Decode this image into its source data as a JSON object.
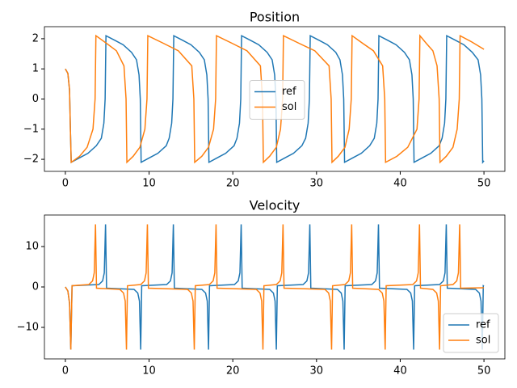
{
  "chart_data": [
    {
      "type": "line",
      "title": "Position",
      "xlim": [
        -2.5,
        52.5
      ],
      "xticks": [
        0,
        10,
        20,
        30,
        40,
        50
      ],
      "ylim": [
        -2.4,
        2.4
      ],
      "yticks": [
        {
          "value": -2,
          "label": "−2"
        },
        {
          "value": -1,
          "label": "−1"
        },
        0,
        1,
        2
      ],
      "legend": "center",
      "series": [
        {
          "name": "ref",
          "color": "#1f77b4",
          "x": [
            0,
            0.3,
            0.5,
            0.6,
            0.7,
            1.7,
            2.7,
            3.7,
            4.3,
            4.6,
            4.75,
            4.85,
            5.9,
            6.9,
            7.9,
            8.5,
            8.8,
            8.95,
            9.05,
            10.05,
            11.05,
            12.05,
            12.4,
            12.7,
            12.85,
            12.95,
            14,
            15,
            16,
            16.6,
            16.9,
            17.05,
            17.15,
            18.15,
            19.15,
            20.15,
            20.5,
            20.8,
            20.95,
            21.05,
            22.1,
            23.1,
            24.1,
            24.7,
            25,
            25.15,
            25.25,
            26.25,
            27.25,
            28.25,
            28.7,
            29,
            29.15,
            29.25,
            30.3,
            31.3,
            32.3,
            32.8,
            33.1,
            33.25,
            33.35,
            34.35,
            35.35,
            36.35,
            36.9,
            37.2,
            37.35,
            37.45,
            38.5,
            39.5,
            40.5,
            41.1,
            41.4,
            41.55,
            41.65,
            42.65,
            43.65,
            44.65,
            45,
            45.3,
            45.45,
            45.55,
            46.6,
            47.6,
            48.6,
            49.3,
            49.6,
            49.75,
            49.85,
            50
          ],
          "values": [
            1,
            0.85,
            0.3,
            -1,
            -2.1,
            -1.95,
            -1.8,
            -1.55,
            -1.3,
            -0.8,
            0,
            2.1,
            1.95,
            1.8,
            1.55,
            1.3,
            0.8,
            0,
            -2.1,
            -1.95,
            -1.8,
            -1.55,
            -1.3,
            -0.8,
            0,
            2.1,
            1.95,
            1.8,
            1.55,
            1.3,
            0.8,
            0,
            -2.1,
            -1.95,
            -1.8,
            -1.55,
            -1.3,
            -0.8,
            0,
            2.1,
            1.95,
            1.8,
            1.55,
            1.3,
            0.8,
            0,
            -2.1,
            -1.95,
            -1.8,
            -1.55,
            -1.3,
            -0.8,
            0,
            2.1,
            1.95,
            1.8,
            1.55,
            1.3,
            0.8,
            0,
            -2.1,
            -1.95,
            -1.8,
            -1.55,
            -1.3,
            -0.8,
            0,
            2.1,
            1.95,
            1.8,
            1.55,
            1.3,
            0.8,
            0,
            -2.1,
            -1.95,
            -1.8,
            -1.55,
            -1.3,
            -0.8,
            0,
            2.1,
            1.95,
            1.8,
            1.55,
            1.3,
            0.8,
            0,
            -2.1,
            -2.05
          ]
        },
        {
          "name": "sol",
          "color": "#ff7f0e",
          "x": [
            0,
            0.3,
            0.5,
            0.6,
            0.7,
            1.7,
            2.6,
            3.3,
            3.55,
            3.65,
            4.9,
            6.1,
            7.0,
            7.25,
            7.35,
            8.1,
            8.9,
            9.5,
            9.75,
            9.85,
            11.7,
            13.5,
            15.1,
            15.35,
            15.45,
            16.3,
            17.1,
            17.7,
            17.95,
            18.05,
            19.9,
            21.7,
            23.3,
            23.55,
            23.65,
            24.4,
            25.2,
            25.7,
            25.95,
            26.05,
            27.9,
            29.8,
            31.5,
            31.75,
            31.85,
            32.6,
            33.4,
            33.9,
            34.15,
            34.25,
            35.5,
            36.8,
            37.9,
            38.15,
            38.25,
            39.6,
            40.9,
            42.0,
            42.25,
            42.35,
            43.1,
            43.9,
            44.4,
            44.65,
            44.75,
            45.5,
            46.3,
            46.8,
            47.05,
            47.15,
            48.5,
            50
          ],
          "values": [
            1,
            0.85,
            0.3,
            -1,
            -2.1,
            -1.9,
            -1.6,
            -1.0,
            0,
            2.1,
            1.85,
            1.6,
            1.1,
            0,
            -2.1,
            -1.9,
            -1.6,
            -1.0,
            0,
            2.1,
            1.85,
            1.6,
            1.1,
            0,
            -2.1,
            -1.9,
            -1.6,
            -1.0,
            0,
            2.1,
            1.85,
            1.6,
            1.1,
            0,
            -2.1,
            -1.9,
            -1.6,
            -1.0,
            0,
            2.1,
            1.85,
            1.6,
            1.1,
            0,
            -2.1,
            -1.9,
            -1.6,
            -1.0,
            0,
            2.1,
            1.85,
            1.6,
            1.1,
            0,
            -2.1,
            -1.9,
            -1.6,
            -1.0,
            0,
            2.1,
            1.85,
            1.6,
            1.1,
            0,
            -2.1,
            -1.9,
            -1.6,
            -1.0,
            0,
            2.1,
            1.9,
            1.65
          ]
        }
      ]
    },
    {
      "type": "line",
      "title": "Velocity",
      "xlim": [
        -2.5,
        52.5
      ],
      "xticks": [
        0,
        10,
        20,
        30,
        40,
        50
      ],
      "ylim": [
        -17.8,
        17.8
      ],
      "yticks": [
        {
          "value": -10,
          "label": "−10"
        },
        0,
        10
      ],
      "legend": "lower right",
      "series": [
        {
          "name": "ref",
          "color": "#1f77b4",
          "x": [
            0,
            0.3,
            0.5,
            0.65,
            0.8,
            4.0,
            4.45,
            4.65,
            4.8,
            4.92,
            8.2,
            8.65,
            8.85,
            9.0,
            9.12,
            12.1,
            12.55,
            12.75,
            12.9,
            13.02,
            16.3,
            16.75,
            16.95,
            17.1,
            17.22,
            20.2,
            20.65,
            20.85,
            21.0,
            21.12,
            24.4,
            24.85,
            25.05,
            25.2,
            25.32,
            28.4,
            28.85,
            29.05,
            29.2,
            29.32,
            32.5,
            32.95,
            33.15,
            33.3,
            33.42,
            36.6,
            37.05,
            37.25,
            37.4,
            37.52,
            40.8,
            41.25,
            41.45,
            41.6,
            41.72,
            44.7,
            45.15,
            45.35,
            45.5,
            45.62,
            49.0,
            49.45,
            49.65,
            49.8,
            49.92,
            50
          ],
          "values": [
            0,
            -1,
            -4,
            -15.5,
            0.3,
            0.6,
            1.5,
            3.5,
            15.5,
            -0.3,
            -0.6,
            -1.5,
            -3.5,
            -15.5,
            0.3,
            0.6,
            1.5,
            3.5,
            15.5,
            -0.3,
            -0.6,
            -1.5,
            -3.5,
            -15.5,
            0.3,
            0.6,
            1.5,
            3.5,
            15.5,
            -0.3,
            -0.6,
            -1.5,
            -3.5,
            -15.5,
            0.3,
            0.6,
            1.5,
            3.5,
            15.5,
            -0.3,
            -0.6,
            -1.5,
            -3.5,
            -15.5,
            0.3,
            0.6,
            1.5,
            3.5,
            15.5,
            -0.3,
            -0.6,
            -1.5,
            -3.5,
            -15.5,
            0.3,
            0.6,
            1.5,
            3.5,
            15.5,
            -0.3,
            -0.6,
            -1.5,
            -3.5,
            -15.5,
            0.3,
            0.2
          ]
        },
        {
          "name": "sol",
          "color": "#ff7f0e",
          "x": [
            0,
            0.3,
            0.5,
            0.65,
            0.8,
            2.8,
            3.25,
            3.45,
            3.6,
            3.72,
            6.5,
            6.95,
            7.15,
            7.3,
            7.42,
            9.0,
            9.45,
            9.65,
            9.8,
            9.92,
            14.6,
            15.05,
            15.25,
            15.4,
            15.52,
            17.2,
            17.65,
            17.85,
            18.0,
            18.12,
            22.8,
            23.25,
            23.45,
            23.6,
            23.72,
            25.2,
            25.65,
            25.85,
            26.0,
            26.12,
            31.0,
            31.45,
            31.65,
            31.8,
            31.92,
            33.4,
            33.85,
            34.05,
            34.2,
            34.32,
            37.4,
            37.85,
            38.05,
            38.2,
            38.32,
            41.5,
            41.95,
            42.15,
            42.3,
            42.42,
            43.9,
            44.35,
            44.55,
            44.7,
            44.82,
            46.3,
            46.75,
            46.95,
            47.1,
            47.22,
            50
          ],
          "values": [
            0,
            -1,
            -4,
            -15.5,
            0.3,
            0.6,
            1.5,
            3.5,
            15.5,
            -0.3,
            -0.6,
            -1.5,
            -3.5,
            -15.5,
            0.3,
            0.6,
            1.5,
            3.5,
            15.5,
            -0.3,
            -0.6,
            -1.5,
            -3.5,
            -15.5,
            0.3,
            0.6,
            1.5,
            3.5,
            15.5,
            -0.3,
            -0.6,
            -1.5,
            -3.5,
            -15.5,
            0.3,
            0.6,
            1.5,
            3.5,
            15.5,
            -0.3,
            -0.6,
            -1.5,
            -3.5,
            -15.5,
            0.3,
            0.6,
            1.5,
            3.5,
            15.5,
            -0.3,
            -0.6,
            -1.5,
            -3.5,
            -15.5,
            0.3,
            0.6,
            1.5,
            3.5,
            15.5,
            -0.3,
            -0.6,
            -1.5,
            -3.5,
            -15.5,
            0.3,
            0.6,
            1.5,
            3.5,
            15.5,
            -0.3,
            -0.2
          ]
        }
      ]
    }
  ]
}
